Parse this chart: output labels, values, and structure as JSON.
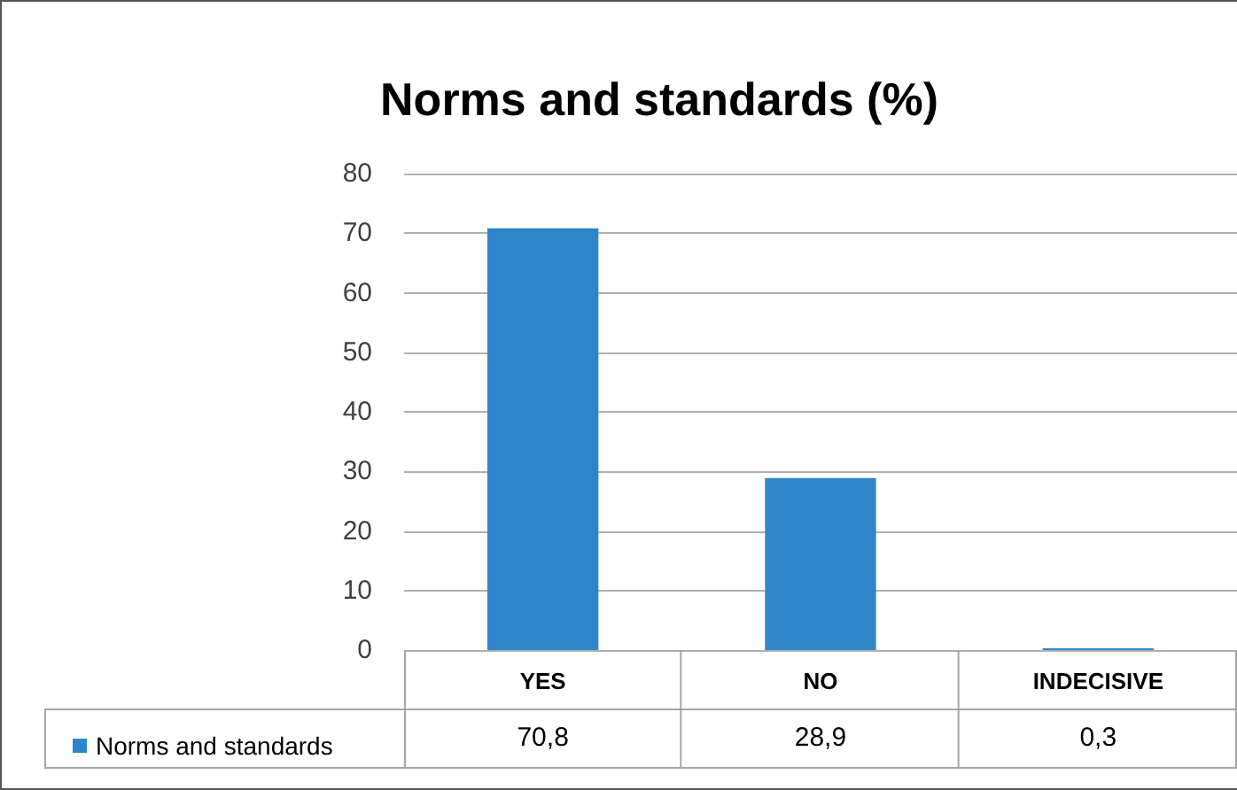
{
  "chart_data": {
    "type": "bar",
    "title": "Norms and standards (%)",
    "categories": [
      "YES",
      "NO",
      "INDECISIVE"
    ],
    "series": [
      {
        "name": "Norms and standards",
        "color": "#2e86c8",
        "values": [
          70.8,
          28.9,
          0.3
        ],
        "value_labels": [
          "70,8",
          "28,9",
          "0,3"
        ]
      }
    ],
    "ylim": [
      0,
      80
    ],
    "yticks": [
      0,
      10,
      20,
      30,
      40,
      50,
      60,
      70,
      80
    ],
    "grid": "y",
    "legend": "bottom left"
  }
}
